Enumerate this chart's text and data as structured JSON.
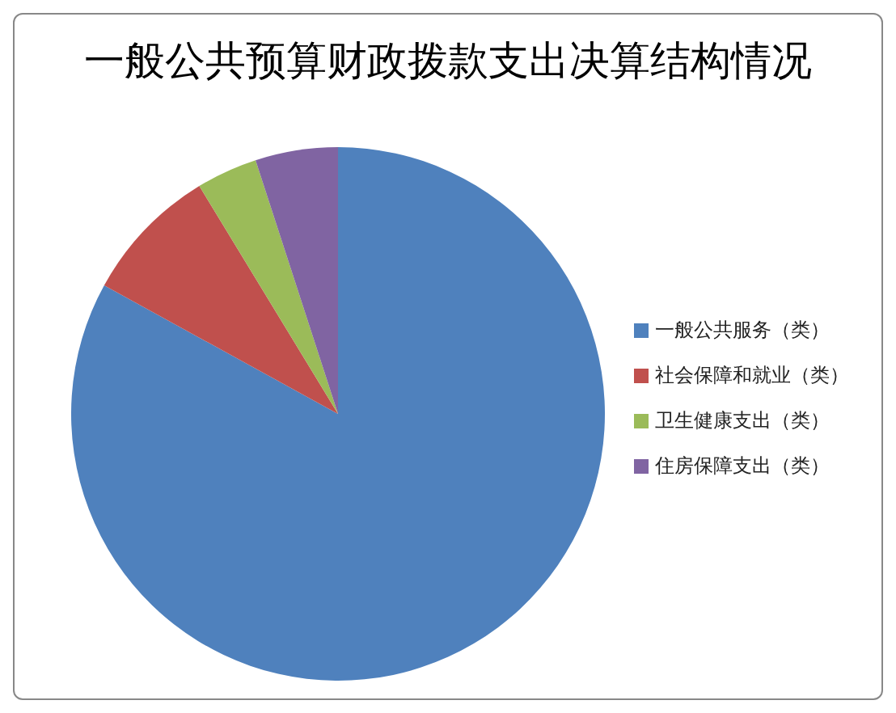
{
  "chart_data": {
    "type": "pie",
    "title": "一般公共预算财政拨款支出决算结构情况",
    "categories": [
      "一般公共服务（类）",
      "社会保障和就业（类）",
      "卫生健康支出（类）",
      "住房保障支出（类）"
    ],
    "values": [
      83,
      8.3,
      3.7,
      5
    ],
    "colors": [
      "#4f81bd",
      "#c0504d",
      "#9bbb59",
      "#8064a2"
    ],
    "legend": "right"
  }
}
